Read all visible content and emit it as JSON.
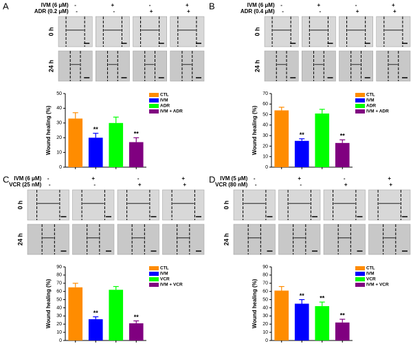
{
  "panels": [
    {
      "label": "A",
      "treatments": [
        {
          "name": "IVM (6 μM)",
          "signs": [
            "-",
            "+",
            "-",
            "+"
          ]
        },
        {
          "name": "ADR (0.2 μM)",
          "signs": [
            "-",
            "-",
            "+",
            "+"
          ]
        }
      ],
      "times": [
        "0 h",
        "24 h"
      ]
    },
    {
      "label": "B",
      "treatments": [
        {
          "name": "IVM (6 μM)",
          "signs": [
            "-",
            "+",
            "-",
            "+"
          ]
        },
        {
          "name": "ADR (0.4 μM)",
          "signs": [
            "-",
            "-",
            "+",
            "+"
          ]
        }
      ],
      "times": [
        "0 h",
        "24 h"
      ]
    },
    {
      "label": "C",
      "treatments": [
        {
          "name": "IVM (6 μM)",
          "signs": [
            "-",
            "+",
            "-",
            "+"
          ]
        },
        {
          "name": "VCR (25 nM)",
          "signs": [
            "-",
            "-",
            "+",
            "+"
          ]
        }
      ],
      "times": [
        "0 h",
        "24 h"
      ]
    },
    {
      "label": "D",
      "treatments": [
        {
          "name": "IVM (5 μM)",
          "signs": [
            "-",
            "+",
            "-",
            "+"
          ]
        },
        {
          "name": "VCR (80 nM)",
          "signs": [
            "-",
            "-",
            "+",
            "+"
          ]
        }
      ],
      "times": [
        "0 h",
        "24 h"
      ]
    }
  ],
  "chart_data": [
    {
      "type": "bar",
      "ylabel": "Wound healing (%)",
      "categories": [
        "CTL",
        "IVM",
        "ADR",
        "IVM + ADR"
      ],
      "colors": [
        "#ff8c00",
        "#0000ff",
        "#00ff00",
        "#800080"
      ],
      "values": [
        33,
        20,
        30,
        17
      ],
      "errors": [
        4,
        3,
        4,
        3
      ],
      "annotations": [
        null,
        "**",
        null,
        "**"
      ],
      "ylim": [
        0,
        50
      ],
      "yticks": [
        0,
        10,
        20,
        30,
        40,
        50
      ]
    },
    {
      "type": "bar",
      "ylabel": "Wound healing (%)",
      "categories": [
        "CTL",
        "IVM",
        "ADR",
        "IVM + ADR"
      ],
      "colors": [
        "#ff8c00",
        "#0000ff",
        "#00ff00",
        "#800080"
      ],
      "values": [
        54,
        25,
        51,
        23
      ],
      "errors": [
        3,
        2,
        4,
        3
      ],
      "annotations": [
        null,
        "**",
        null,
        "**"
      ],
      "ylim": [
        0,
        70
      ],
      "yticks": [
        0,
        10,
        20,
        30,
        40,
        50,
        60,
        70
      ]
    },
    {
      "type": "bar",
      "ylabel": "Wound healing (%)",
      "categories": [
        "CTL",
        "IVM",
        "VCR",
        "IVM + VCR"
      ],
      "colors": [
        "#ff8c00",
        "#0000ff",
        "#00ff00",
        "#800080"
      ],
      "values": [
        65,
        26,
        62,
        21
      ],
      "errors": [
        5,
        3,
        4,
        3
      ],
      "annotations": [
        null,
        "**",
        null,
        "**"
      ],
      "ylim": [
        0,
        90
      ],
      "yticks": [
        0,
        10,
        20,
        30,
        40,
        50,
        60,
        70,
        80,
        90
      ]
    },
    {
      "type": "bar",
      "ylabel": "Wound healing (%)",
      "categories": [
        "CTL",
        "IVM",
        "VCR",
        "IVM + VCR"
      ],
      "colors": [
        "#ff8c00",
        "#0000ff",
        "#00ff00",
        "#800080"
      ],
      "values": [
        61,
        45,
        42,
        22
      ],
      "errors": [
        5,
        5,
        5,
        4
      ],
      "annotations": [
        null,
        "**",
        "**",
        "**"
      ],
      "ylim": [
        0,
        90
      ],
      "yticks": [
        0,
        10,
        20,
        30,
        40,
        50,
        60,
        70,
        80,
        90
      ]
    }
  ]
}
